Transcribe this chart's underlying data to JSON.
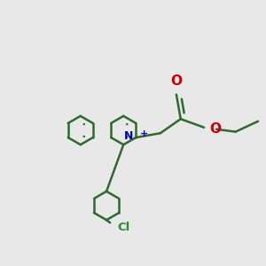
{
  "background_color": "#e8e8e8",
  "bond_color": "#2d6b2d",
  "bond_width": 1.8,
  "nitrogen_color": "#0000cc",
  "oxygen_color": "#cc0000",
  "chlorine_color": "#2d8c2d",
  "figsize": [
    3.0,
    3.0
  ],
  "dpi": 100,
  "xlim": [
    0,
    300
  ],
  "ylim": [
    0,
    300
  ]
}
